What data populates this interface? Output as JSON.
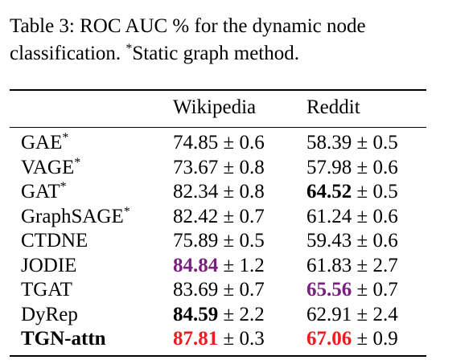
{
  "caption": {
    "prefix": "Table 3: ROC AUC % for the dynamic node classification. ",
    "star": "*",
    "suffix": "Static graph method."
  },
  "header": {
    "col1": "Wikipedia",
    "col2": "Reddit"
  },
  "pm": "±",
  "rows": [
    {
      "method": "GAE",
      "star": "*",
      "wiki_mean": "74.85",
      "wiki_std": "0.6",
      "reddit_mean": "58.39",
      "reddit_std": "0.5"
    },
    {
      "method": "VAGE",
      "star": "*",
      "wiki_mean": "73.67",
      "wiki_std": "0.8",
      "reddit_mean": "57.98",
      "reddit_std": "0.6"
    },
    {
      "method": "GAT",
      "star": "*",
      "wiki_mean": "82.34",
      "wiki_std": "0.8",
      "reddit_mean": "64.52",
      "reddit_std": "0.5"
    },
    {
      "method": "GraphSAGE",
      "star": "*",
      "wiki_mean": "82.42",
      "wiki_std": "0.7",
      "reddit_mean": "61.24",
      "reddit_std": "0.6"
    },
    {
      "method": "CTDNE",
      "star": "",
      "wiki_mean": "75.89",
      "wiki_std": "0.5",
      "reddit_mean": "59.43",
      "reddit_std": "0.6"
    },
    {
      "method": "JODIE",
      "star": "",
      "wiki_mean": "84.84",
      "wiki_std": "1.2",
      "reddit_mean": "61.83",
      "reddit_std": "2.7"
    },
    {
      "method": "TGAT",
      "star": "",
      "wiki_mean": "83.69",
      "wiki_std": "0.7",
      "reddit_mean": "65.56",
      "reddit_std": "0.7"
    },
    {
      "method": "DyRep",
      "star": "",
      "wiki_mean": "84.59",
      "wiki_std": "2.2",
      "reddit_mean": "62.91",
      "reddit_std": "2.4"
    },
    {
      "method": "TGN-attn",
      "star": "",
      "wiki_mean": "87.81",
      "wiki_std": "0.3",
      "reddit_mean": "67.06",
      "reddit_std": "0.9"
    }
  ],
  "colors": {
    "highlight_purple": "#7a1f80",
    "highlight_red": "#ee1c1c"
  }
}
